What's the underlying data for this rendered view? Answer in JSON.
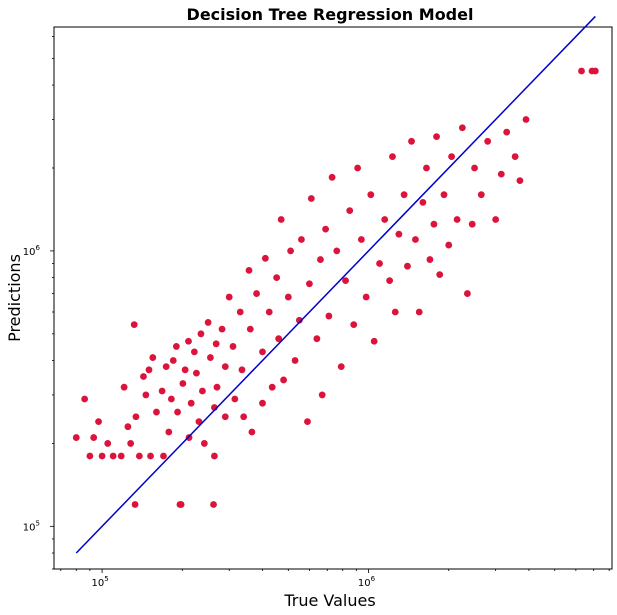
{
  "chart_data": {
    "type": "scatter",
    "title": "Decision Tree Regression Model",
    "xlabel": "True Values",
    "ylabel": "Predictions",
    "xscale": "log",
    "yscale": "log",
    "xlim": [
      66000,
      8200000
    ],
    "ylim": [
      70000,
      6500000
    ],
    "grid": false,
    "x_ticks": [
      {
        "value": 100000,
        "label": "10^5"
      },
      {
        "value": 1000000,
        "label": "10^6"
      }
    ],
    "y_ticks": [
      {
        "value": 100000,
        "label": "10^5"
      },
      {
        "value": 1000000,
        "label": "10^6"
      }
    ],
    "series": [
      {
        "kind": "scatter",
        "color": "#dc143c",
        "points": [
          [
            80000,
            210000
          ],
          [
            86000,
            290000
          ],
          [
            90000,
            180000
          ],
          [
            93000,
            210000
          ],
          [
            97000,
            240000
          ],
          [
            100000,
            180000
          ],
          [
            105000,
            200000
          ],
          [
            110000,
            180000
          ],
          [
            118000,
            180000
          ],
          [
            121000,
            320000
          ],
          [
            125000,
            230000
          ],
          [
            128000,
            200000
          ],
          [
            132000,
            540000
          ],
          [
            133000,
            120000
          ],
          [
            134000,
            250000
          ],
          [
            138000,
            180000
          ],
          [
            143000,
            350000
          ],
          [
            146000,
            300000
          ],
          [
            150000,
            370000
          ],
          [
            152000,
            180000
          ],
          [
            155000,
            410000
          ],
          [
            160000,
            260000
          ],
          [
            168000,
            310000
          ],
          [
            170000,
            180000
          ],
          [
            174000,
            380000
          ],
          [
            178000,
            220000
          ],
          [
            182000,
            290000
          ],
          [
            185000,
            400000
          ],
          [
            190000,
            450000
          ],
          [
            192000,
            260000
          ],
          [
            196000,
            120000
          ],
          [
            198000,
            120000
          ],
          [
            201000,
            330000
          ],
          [
            205000,
            370000
          ],
          [
            211000,
            470000
          ],
          [
            212000,
            210000
          ],
          [
            216000,
            280000
          ],
          [
            222000,
            430000
          ],
          [
            226000,
            360000
          ],
          [
            231000,
            240000
          ],
          [
            235000,
            500000
          ],
          [
            238000,
            310000
          ],
          [
            242000,
            200000
          ],
          [
            250000,
            550000
          ],
          [
            255000,
            410000
          ],
          [
            262000,
            120000
          ],
          [
            264000,
            270000
          ],
          [
            264000,
            180000
          ],
          [
            268000,
            460000
          ],
          [
            270000,
            320000
          ],
          [
            282000,
            520000
          ],
          [
            290000,
            380000
          ],
          [
            290000,
            250000
          ],
          [
            300000,
            680000
          ],
          [
            310000,
            450000
          ],
          [
            315000,
            290000
          ],
          [
            330000,
            600000
          ],
          [
            335000,
            370000
          ],
          [
            340000,
            250000
          ],
          [
            356000,
            850000
          ],
          [
            360000,
            520000
          ],
          [
            365000,
            220000
          ],
          [
            380000,
            700000
          ],
          [
            400000,
            430000
          ],
          [
            400000,
            280000
          ],
          [
            410000,
            940000
          ],
          [
            424000,
            600000
          ],
          [
            435000,
            320000
          ],
          [
            452000,
            800000
          ],
          [
            460000,
            480000
          ],
          [
            470000,
            1300000
          ],
          [
            480000,
            340000
          ],
          [
            500000,
            680000
          ],
          [
            510000,
            1000000
          ],
          [
            530000,
            400000
          ],
          [
            550000,
            560000
          ],
          [
            560000,
            1100000
          ],
          [
            590000,
            240000
          ],
          [
            600000,
            760000
          ],
          [
            610000,
            1550000
          ],
          [
            640000,
            480000
          ],
          [
            660000,
            930000
          ],
          [
            670000,
            300000
          ],
          [
            690000,
            1200000
          ],
          [
            710000,
            580000
          ],
          [
            730000,
            1850000
          ],
          [
            760000,
            1000000
          ],
          [
            790000,
            380000
          ],
          [
            820000,
            780000
          ],
          [
            850000,
            1400000
          ],
          [
            880000,
            540000
          ],
          [
            910000,
            2000000
          ],
          [
            940000,
            1100000
          ],
          [
            980000,
            680000
          ],
          [
            1020000,
            1600000
          ],
          [
            1050000,
            470000
          ],
          [
            1100000,
            900000
          ],
          [
            1150000,
            1300000
          ],
          [
            1200000,
            780000
          ],
          [
            1230000,
            2200000
          ],
          [
            1260000,
            600000
          ],
          [
            1300000,
            1150000
          ],
          [
            1360000,
            1600000
          ],
          [
            1400000,
            880000
          ],
          [
            1450000,
            2500000
          ],
          [
            1500000,
            1100000
          ],
          [
            1550000,
            600000
          ],
          [
            1600000,
            1500000
          ],
          [
            1650000,
            2000000
          ],
          [
            1700000,
            930000
          ],
          [
            1760000,
            1250000
          ],
          [
            1800000,
            2600000
          ],
          [
            1850000,
            820000
          ],
          [
            1920000,
            1600000
          ],
          [
            2000000,
            1050000
          ],
          [
            2050000,
            2200000
          ],
          [
            2150000,
            1300000
          ],
          [
            2250000,
            2800000
          ],
          [
            2350000,
            700000
          ],
          [
            2450000,
            1250000
          ],
          [
            2500000,
            2000000
          ],
          [
            2650000,
            1600000
          ],
          [
            2800000,
            2500000
          ],
          [
            3000000,
            1300000
          ],
          [
            3150000,
            1900000
          ],
          [
            3300000,
            2700000
          ],
          [
            3550000,
            2200000
          ],
          [
            3700000,
            1800000
          ],
          [
            3900000,
            3000000
          ],
          [
            6300000,
            4500000
          ],
          [
            6900000,
            4500000
          ],
          [
            7100000,
            4500000
          ]
        ]
      },
      {
        "kind": "line",
        "color": "#0000cd",
        "points": [
          [
            80000,
            80000
          ],
          [
            7100000,
            7100000
          ]
        ]
      }
    ]
  }
}
